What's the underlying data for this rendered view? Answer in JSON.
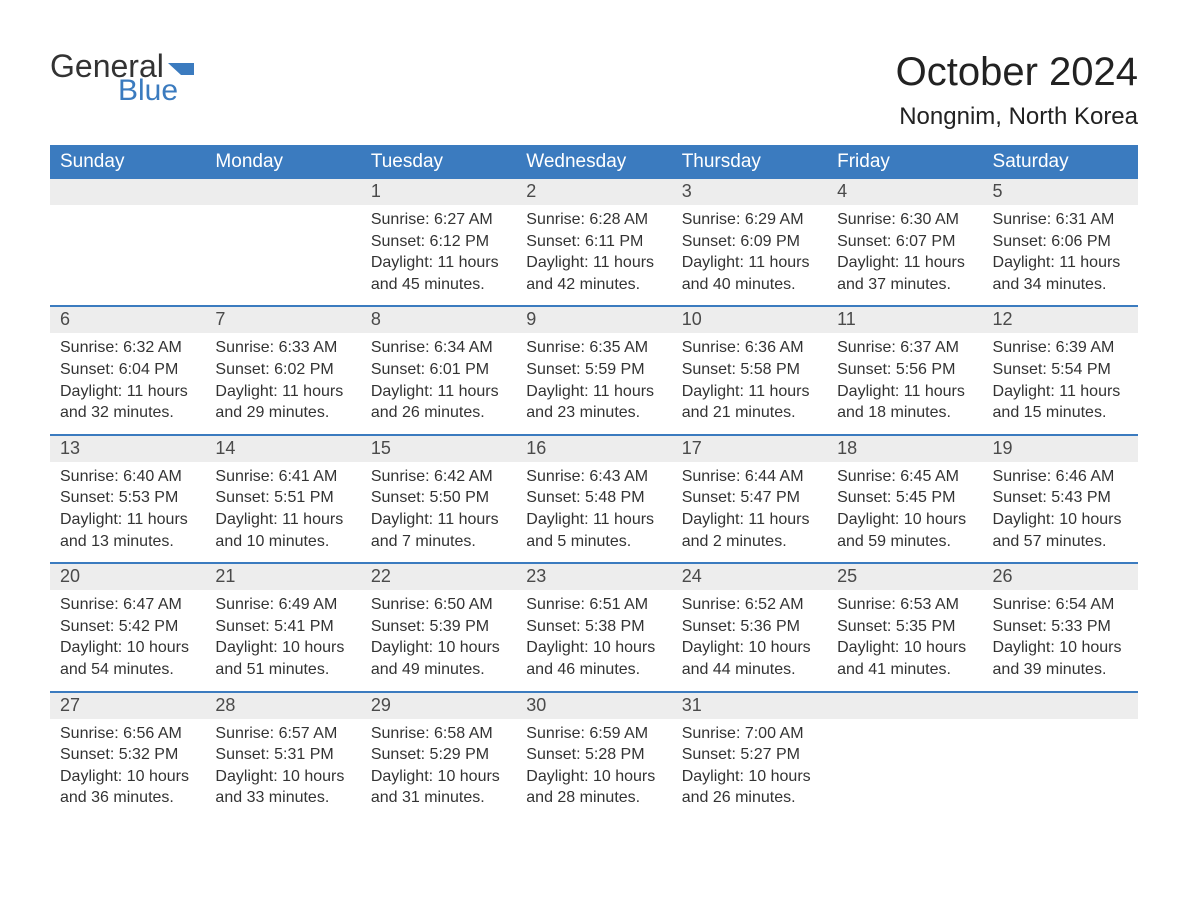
{
  "logo": {
    "word1": "General",
    "word2": "Blue",
    "flag_color": "#3b7bbf",
    "word1_color": "#333333",
    "word2_color": "#3b7bbf"
  },
  "title": {
    "month_year": "October 2024",
    "location": "Nongnim, North Korea"
  },
  "styling": {
    "header_bg": "#3b7bbf",
    "header_text_color": "#ffffff",
    "daynum_bg": "#ededed",
    "daynum_color": "#4a4a4a",
    "cell_border_color": "#3b7bbf",
    "body_text_color": "#333333",
    "background_color": "#ffffff",
    "header_fontsize": 19,
    "title_fontsize": 40,
    "location_fontsize": 24,
    "cell_fontsize": 16
  },
  "day_headers": [
    "Sunday",
    "Monday",
    "Tuesday",
    "Wednesday",
    "Thursday",
    "Friday",
    "Saturday"
  ],
  "weeks": [
    [
      {
        "day": "",
        "sunrise": "",
        "sunset": "",
        "daylight": ""
      },
      {
        "day": "",
        "sunrise": "",
        "sunset": "",
        "daylight": ""
      },
      {
        "day": "1",
        "sunrise": "Sunrise: 6:27 AM",
        "sunset": "Sunset: 6:12 PM",
        "daylight": "Daylight: 11 hours and 45 minutes."
      },
      {
        "day": "2",
        "sunrise": "Sunrise: 6:28 AM",
        "sunset": "Sunset: 6:11 PM",
        "daylight": "Daylight: 11 hours and 42 minutes."
      },
      {
        "day": "3",
        "sunrise": "Sunrise: 6:29 AM",
        "sunset": "Sunset: 6:09 PM",
        "daylight": "Daylight: 11 hours and 40 minutes."
      },
      {
        "day": "4",
        "sunrise": "Sunrise: 6:30 AM",
        "sunset": "Sunset: 6:07 PM",
        "daylight": "Daylight: 11 hours and 37 minutes."
      },
      {
        "day": "5",
        "sunrise": "Sunrise: 6:31 AM",
        "sunset": "Sunset: 6:06 PM",
        "daylight": "Daylight: 11 hours and 34 minutes."
      }
    ],
    [
      {
        "day": "6",
        "sunrise": "Sunrise: 6:32 AM",
        "sunset": "Sunset: 6:04 PM",
        "daylight": "Daylight: 11 hours and 32 minutes."
      },
      {
        "day": "7",
        "sunrise": "Sunrise: 6:33 AM",
        "sunset": "Sunset: 6:02 PM",
        "daylight": "Daylight: 11 hours and 29 minutes."
      },
      {
        "day": "8",
        "sunrise": "Sunrise: 6:34 AM",
        "sunset": "Sunset: 6:01 PM",
        "daylight": "Daylight: 11 hours and 26 minutes."
      },
      {
        "day": "9",
        "sunrise": "Sunrise: 6:35 AM",
        "sunset": "Sunset: 5:59 PM",
        "daylight": "Daylight: 11 hours and 23 minutes."
      },
      {
        "day": "10",
        "sunrise": "Sunrise: 6:36 AM",
        "sunset": "Sunset: 5:58 PM",
        "daylight": "Daylight: 11 hours and 21 minutes."
      },
      {
        "day": "11",
        "sunrise": "Sunrise: 6:37 AM",
        "sunset": "Sunset: 5:56 PM",
        "daylight": "Daylight: 11 hours and 18 minutes."
      },
      {
        "day": "12",
        "sunrise": "Sunrise: 6:39 AM",
        "sunset": "Sunset: 5:54 PM",
        "daylight": "Daylight: 11 hours and 15 minutes."
      }
    ],
    [
      {
        "day": "13",
        "sunrise": "Sunrise: 6:40 AM",
        "sunset": "Sunset: 5:53 PM",
        "daylight": "Daylight: 11 hours and 13 minutes."
      },
      {
        "day": "14",
        "sunrise": "Sunrise: 6:41 AM",
        "sunset": "Sunset: 5:51 PM",
        "daylight": "Daylight: 11 hours and 10 minutes."
      },
      {
        "day": "15",
        "sunrise": "Sunrise: 6:42 AM",
        "sunset": "Sunset: 5:50 PM",
        "daylight": "Daylight: 11 hours and 7 minutes."
      },
      {
        "day": "16",
        "sunrise": "Sunrise: 6:43 AM",
        "sunset": "Sunset: 5:48 PM",
        "daylight": "Daylight: 11 hours and 5 minutes."
      },
      {
        "day": "17",
        "sunrise": "Sunrise: 6:44 AM",
        "sunset": "Sunset: 5:47 PM",
        "daylight": "Daylight: 11 hours and 2 minutes."
      },
      {
        "day": "18",
        "sunrise": "Sunrise: 6:45 AM",
        "sunset": "Sunset: 5:45 PM",
        "daylight": "Daylight: 10 hours and 59 minutes."
      },
      {
        "day": "19",
        "sunrise": "Sunrise: 6:46 AM",
        "sunset": "Sunset: 5:43 PM",
        "daylight": "Daylight: 10 hours and 57 minutes."
      }
    ],
    [
      {
        "day": "20",
        "sunrise": "Sunrise: 6:47 AM",
        "sunset": "Sunset: 5:42 PM",
        "daylight": "Daylight: 10 hours and 54 minutes."
      },
      {
        "day": "21",
        "sunrise": "Sunrise: 6:49 AM",
        "sunset": "Sunset: 5:41 PM",
        "daylight": "Daylight: 10 hours and 51 minutes."
      },
      {
        "day": "22",
        "sunrise": "Sunrise: 6:50 AM",
        "sunset": "Sunset: 5:39 PM",
        "daylight": "Daylight: 10 hours and 49 minutes."
      },
      {
        "day": "23",
        "sunrise": "Sunrise: 6:51 AM",
        "sunset": "Sunset: 5:38 PM",
        "daylight": "Daylight: 10 hours and 46 minutes."
      },
      {
        "day": "24",
        "sunrise": "Sunrise: 6:52 AM",
        "sunset": "Sunset: 5:36 PM",
        "daylight": "Daylight: 10 hours and 44 minutes."
      },
      {
        "day": "25",
        "sunrise": "Sunrise: 6:53 AM",
        "sunset": "Sunset: 5:35 PM",
        "daylight": "Daylight: 10 hours and 41 minutes."
      },
      {
        "day": "26",
        "sunrise": "Sunrise: 6:54 AM",
        "sunset": "Sunset: 5:33 PM",
        "daylight": "Daylight: 10 hours and 39 minutes."
      }
    ],
    [
      {
        "day": "27",
        "sunrise": "Sunrise: 6:56 AM",
        "sunset": "Sunset: 5:32 PM",
        "daylight": "Daylight: 10 hours and 36 minutes."
      },
      {
        "day": "28",
        "sunrise": "Sunrise: 6:57 AM",
        "sunset": "Sunset: 5:31 PM",
        "daylight": "Daylight: 10 hours and 33 minutes."
      },
      {
        "day": "29",
        "sunrise": "Sunrise: 6:58 AM",
        "sunset": "Sunset: 5:29 PM",
        "daylight": "Daylight: 10 hours and 31 minutes."
      },
      {
        "day": "30",
        "sunrise": "Sunrise: 6:59 AM",
        "sunset": "Sunset: 5:28 PM",
        "daylight": "Daylight: 10 hours and 28 minutes."
      },
      {
        "day": "31",
        "sunrise": "Sunrise: 7:00 AM",
        "sunset": "Sunset: 5:27 PM",
        "daylight": "Daylight: 10 hours and 26 minutes."
      },
      {
        "day": "",
        "sunrise": "",
        "sunset": "",
        "daylight": ""
      },
      {
        "day": "",
        "sunrise": "",
        "sunset": "",
        "daylight": ""
      }
    ]
  ]
}
